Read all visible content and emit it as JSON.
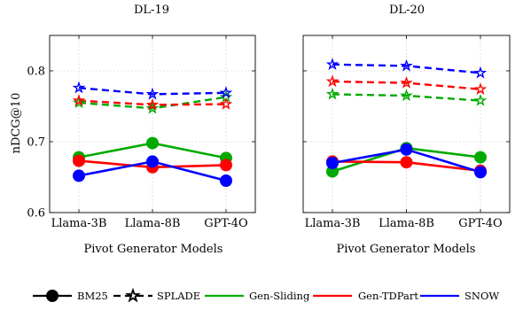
{
  "chart_data": [
    {
      "type": "line",
      "title": "DL-19",
      "xlabel": "Pivot Generator Models",
      "ylabel": "nDCG@10",
      "categories": [
        "Llama-3B",
        "Llama-8B",
        "GPT-4O"
      ],
      "ylim": [
        0.6,
        0.85
      ],
      "yticks": [
        "0.6",
        "0.7",
        "0.8"
      ],
      "grid": true,
      "series": [
        {
          "name": "BM25 Gen-Sliding",
          "values": [
            0.678,
            0.698,
            0.677
          ],
          "color": "#00aa00",
          "dashed": false,
          "marker": "circle"
        },
        {
          "name": "BM25 Gen-TDPart",
          "values": [
            0.673,
            0.664,
            0.667
          ],
          "color": "#ff0000",
          "dashed": false,
          "marker": "circle"
        },
        {
          "name": "BM25 SNOW",
          "values": [
            0.652,
            0.672,
            0.645
          ],
          "color": "#0000ff",
          "dashed": false,
          "marker": "circle"
        },
        {
          "name": "SPLADE Gen-Sliding",
          "values": [
            0.755,
            0.747,
            0.763
          ],
          "color": "#00aa00",
          "dashed": true,
          "marker": "star"
        },
        {
          "name": "SPLADE Gen-TDPart",
          "values": [
            0.758,
            0.752,
            0.753
          ],
          "color": "#ff0000",
          "dashed": true,
          "marker": "star"
        },
        {
          "name": "SPLADE SNOW",
          "values": [
            0.776,
            0.767,
            0.769
          ],
          "color": "#0000ff",
          "dashed": true,
          "marker": "star"
        }
      ]
    },
    {
      "type": "line",
      "title": "DL-20",
      "xlabel": "Pivot Generator Models",
      "ylabel": "",
      "categories": [
        "Llama-3B",
        "Llama-8B",
        "GPT-4O"
      ],
      "ylim": [
        0.6,
        0.85
      ],
      "yticks": [],
      "grid": true,
      "series": [
        {
          "name": "BM25 Gen-Sliding",
          "values": [
            0.658,
            0.691,
            0.678
          ],
          "color": "#00aa00",
          "dashed": false,
          "marker": "circle"
        },
        {
          "name": "BM25 Gen-TDPart",
          "values": [
            0.672,
            0.671,
            0.659
          ],
          "color": "#ff0000",
          "dashed": false,
          "marker": "circle"
        },
        {
          "name": "BM25 SNOW",
          "values": [
            0.67,
            0.689,
            0.657
          ],
          "color": "#0000ff",
          "dashed": false,
          "marker": "circle"
        },
        {
          "name": "SPLADE Gen-Sliding",
          "values": [
            0.767,
            0.765,
            0.758
          ],
          "color": "#00aa00",
          "dashed": true,
          "marker": "star"
        },
        {
          "name": "SPLADE Gen-TDPart",
          "values": [
            0.785,
            0.783,
            0.774
          ],
          "color": "#ff0000",
          "dashed": true,
          "marker": "star"
        },
        {
          "name": "SPLADE SNOW",
          "values": [
            0.809,
            0.807,
            0.797
          ],
          "color": "#0000ff",
          "dashed": true,
          "marker": "star"
        }
      ]
    }
  ],
  "legend": {
    "placement": "bottom",
    "items": [
      {
        "label": "BM25",
        "color": "#000000",
        "dashed": false,
        "marker": "circle"
      },
      {
        "label": "SPLADE",
        "color": "#000000",
        "dashed": true,
        "marker": "star"
      },
      {
        "label": "Gen-Sliding",
        "color": "#00aa00",
        "dashed": false,
        "marker": "none"
      },
      {
        "label": "Gen-TDPart",
        "color": "#ff0000",
        "dashed": false,
        "marker": "none"
      },
      {
        "label": "SNOW",
        "color": "#0000ff",
        "dashed": false,
        "marker": "none"
      }
    ]
  }
}
